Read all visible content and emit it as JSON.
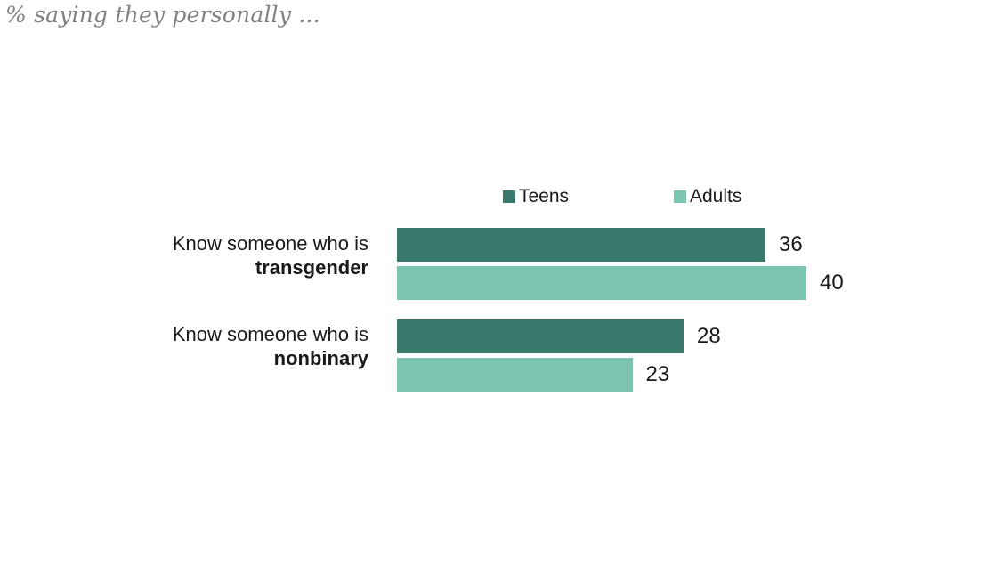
{
  "chart_data": {
    "type": "bar",
    "orientation": "horizontal",
    "subtitle": "% saying they personally ...",
    "categories": [
      "Know someone who is transgender",
      "Know someone who is nonbinary"
    ],
    "category_labels": [
      {
        "prefix": "Know someone who is",
        "bold": "transgender"
      },
      {
        "prefix": "Know someone who is",
        "bold": "nonbinary"
      }
    ],
    "series": [
      {
        "name": "Teens",
        "color": "#38796b",
        "values": [
          36,
          28
        ]
      },
      {
        "name": "Adults",
        "color": "#7dc4b0",
        "values": [
          40,
          23
        ]
      }
    ],
    "show_value_labels": true,
    "xlim": [
      0,
      40
    ],
    "axes_hidden": true,
    "grid": false,
    "legend_position": "top",
    "background": "#ffffff",
    "subtitle_color": "#828282",
    "text_color": "#1a1a1a"
  }
}
